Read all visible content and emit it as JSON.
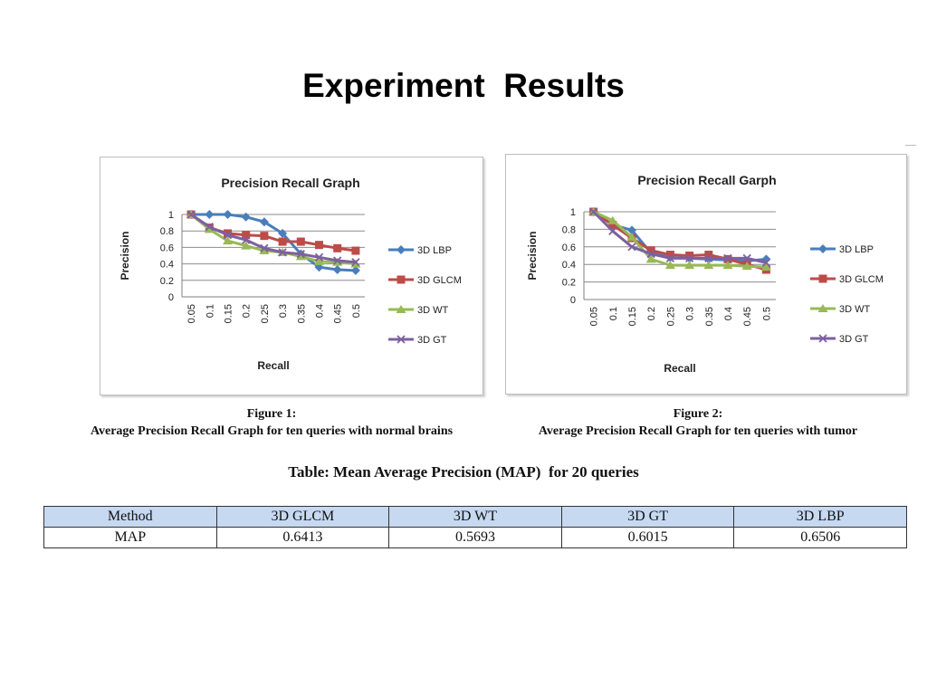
{
  "slide": {
    "title": "Experiment  Results"
  },
  "figures": [
    {
      "caption_title": "Figure 1:",
      "caption_text": "Average Precision Recall Graph for ten queries with normal brains"
    },
    {
      "caption_title": "Figure 2:",
      "caption_text": "Average Precision Recall Graph for ten queries with tumor"
    }
  ],
  "table": {
    "title": "Table: Mean Average Precision (MAP)  for 20 queries",
    "header": [
      "Method",
      "3D GLCM",
      "3D WT",
      "3D GT",
      "3D LBP"
    ],
    "row": [
      "MAP",
      "0.6413",
      "0.5693",
      "0.6015",
      "0.6506"
    ]
  },
  "chart_data": [
    {
      "type": "line",
      "title": "Precision Recall Graph",
      "xlabel": "Recall",
      "ylabel": "Precision",
      "categories": [
        "0.05",
        "0.1",
        "0.15",
        "0.2",
        "0.25",
        "0.3",
        "0.35",
        "0.4",
        "0.45",
        "0.5"
      ],
      "yticks": [
        "0",
        "0.2",
        "0.4",
        "0.6",
        "0.8",
        "1"
      ],
      "ylim": [
        0,
        1
      ],
      "grid": true,
      "legend_position": "right",
      "series": [
        {
          "name": "3D LBP",
          "color": "#4a7ebb",
          "marker": "diamond",
          "values": [
            1.0,
            1.0,
            1.0,
            0.97,
            0.91,
            0.77,
            0.52,
            0.36,
            0.33,
            0.32
          ]
        },
        {
          "name": "3D GLCM",
          "color": "#be4b48",
          "marker": "square",
          "values": [
            1.0,
            0.84,
            0.77,
            0.75,
            0.74,
            0.67,
            0.67,
            0.63,
            0.59,
            0.56
          ]
        },
        {
          "name": "3D WT",
          "color": "#98b954",
          "marker": "triangle",
          "values": [
            1.0,
            0.82,
            0.68,
            0.62,
            0.56,
            0.54,
            0.49,
            0.43,
            0.42,
            0.4
          ]
        },
        {
          "name": "3D GT",
          "color": "#7d60a0",
          "marker": "x",
          "values": [
            1.0,
            0.85,
            0.75,
            0.69,
            0.59,
            0.54,
            0.52,
            0.48,
            0.44,
            0.42
          ]
        }
      ]
    },
    {
      "type": "line",
      "title": "Precision Recall Garph",
      "xlabel": "Recall",
      "ylabel": "Precision",
      "categories": [
        "0.05",
        "0.1",
        "0.15",
        "0.2",
        "0.25",
        "0.3",
        "0.35",
        "0.4",
        "0.45",
        "0.5"
      ],
      "yticks": [
        "0",
        "0.2",
        "0.4",
        "0.6",
        "0.8",
        "1"
      ],
      "ylim": [
        0,
        1
      ],
      "grid": true,
      "legend_position": "right",
      "series": [
        {
          "name": "3D LBP",
          "color": "#4a7ebb",
          "marker": "diamond",
          "values": [
            1.0,
            0.85,
            0.79,
            0.53,
            0.48,
            0.47,
            0.46,
            0.45,
            0.44,
            0.46
          ]
        },
        {
          "name": "3D GLCM",
          "color": "#be4b48",
          "marker": "square",
          "values": [
            1.0,
            0.85,
            0.7,
            0.56,
            0.51,
            0.5,
            0.51,
            0.46,
            0.4,
            0.34
          ]
        },
        {
          "name": "3D WT",
          "color": "#98b954",
          "marker": "triangle",
          "values": [
            1.0,
            0.9,
            0.71,
            0.46,
            0.39,
            0.39,
            0.39,
            0.39,
            0.38,
            0.37
          ]
        },
        {
          "name": "3D GT",
          "color": "#7d60a0",
          "marker": "x",
          "values": [
            1.0,
            0.78,
            0.6,
            0.52,
            0.47,
            0.47,
            0.47,
            0.47,
            0.47,
            0.42
          ]
        }
      ]
    }
  ]
}
